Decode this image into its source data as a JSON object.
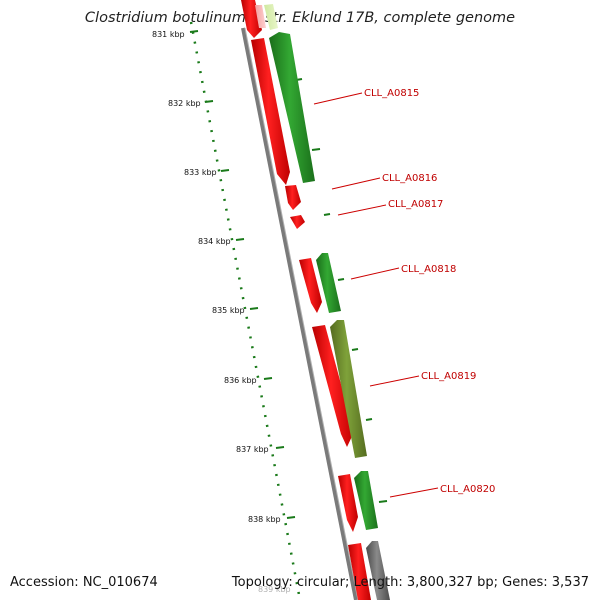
{
  "title": "Clostridium botulinum B str. Eklund 17B, complete genome",
  "accession_text": "Accession: NC_010674",
  "summary_text": "Topology: circular; Length: 3,800,327 bp; Genes: 3,537",
  "axis_labels": [
    "831 kbp",
    "832 kbp",
    "833 kbp",
    "834 kbp",
    "835 kbp",
    "836 kbp",
    "837 kbp",
    "838 kbp",
    "839 kbp"
  ],
  "gene_labels": [
    "CLL_A0815",
    "CLL_A0816",
    "CLL_A0817",
    "CLL_A0818",
    "CLL_A0819",
    "CLL_A0820"
  ],
  "colors": {
    "forward_gene": "#ee1111",
    "reverse_gene": "#228b22",
    "olive_gene": "#6b8e23",
    "gray_gene": "#666666",
    "backbone": "#888888",
    "tick": "#1a7a1a",
    "label": "#cc0000"
  }
}
